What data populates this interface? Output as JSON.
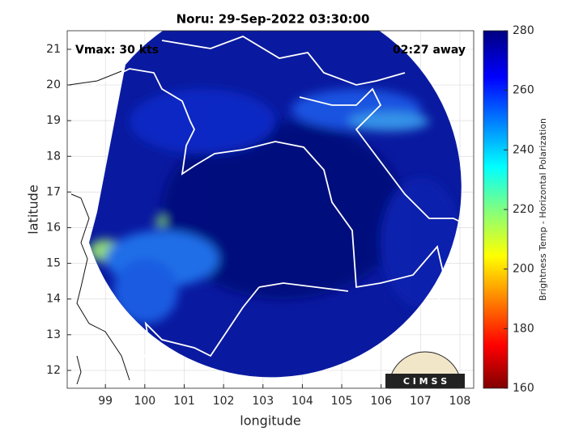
{
  "chart_data": {
    "type": "map",
    "title": "Noru: 29-Sep-2022 03:30:00",
    "annotations": [
      "Vmax: 30 kts",
      "02:27 away"
    ],
    "xlabel": "longitude",
    "ylabel": "latitude",
    "xlim": [
      98.03,
      108.35
    ],
    "xticks": [
      99,
      100,
      101,
      102,
      103,
      104,
      105,
      106,
      107,
      108
    ],
    "ylim": [
      11.5,
      21.52
    ],
    "yticks": [
      12,
      13,
      14,
      15,
      16,
      17,
      18,
      19,
      20,
      21
    ],
    "grid": true,
    "colorbar": {
      "label": "Brightness Temp - Horizontal Polarization",
      "lim": [
        160,
        280
      ],
      "ticks": [
        160,
        180,
        200,
        220,
        240,
        260,
        280
      ]
    },
    "logo": "C I M S S"
  }
}
